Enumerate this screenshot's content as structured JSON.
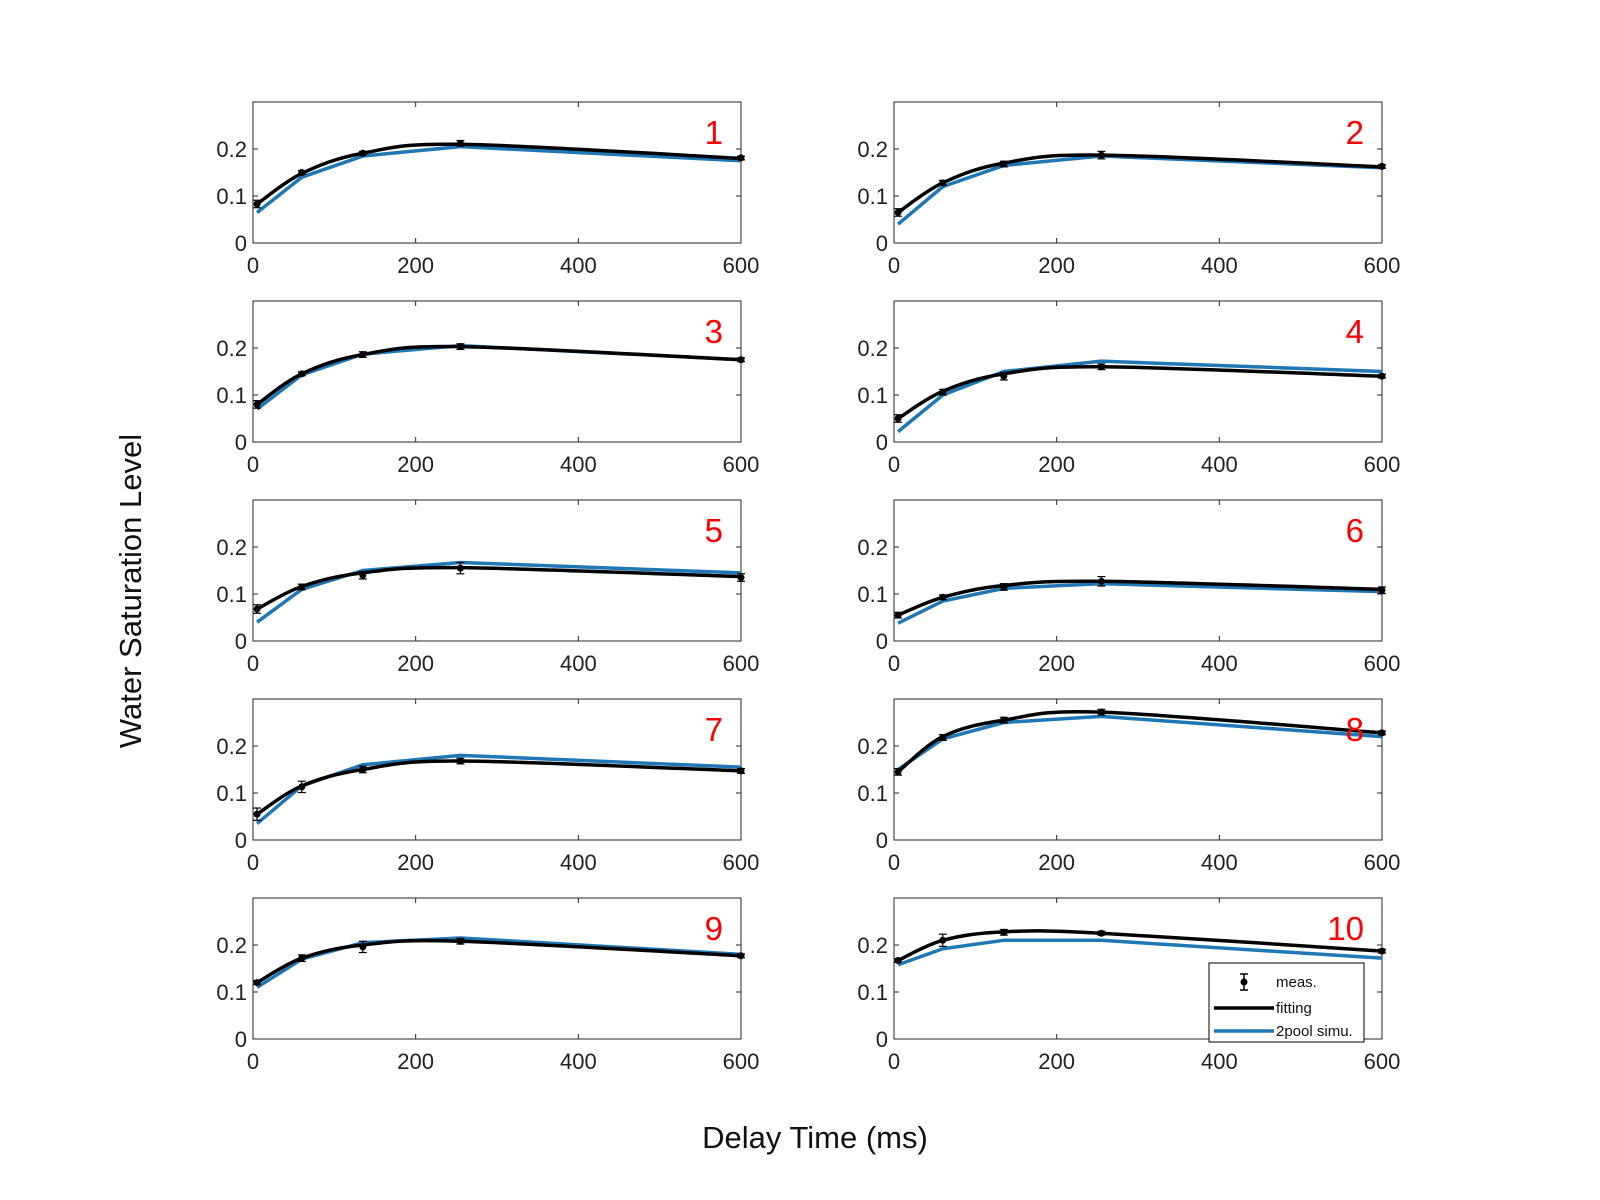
{
  "figure": {
    "xlabel": "Delay Time (ms)",
    "ylabel": "Water Saturation Level",
    "colors": {
      "measured": "#000000",
      "fitting": "#000000",
      "simulation": "#1f77b4",
      "panel_label": "#ff0000"
    }
  },
  "legend": {
    "entries": [
      "meas.",
      "fitting",
      "2pool simu."
    ]
  },
  "chart_data": [
    {
      "type": "line",
      "label": "1",
      "xlim": [
        0,
        600
      ],
      "ylim": [
        0,
        0.3
      ],
      "xticks": [
        0,
        200,
        400,
        600
      ],
      "yticks": [
        0,
        0.1,
        0.2
      ],
      "x": [
        5,
        60,
        135,
        255,
        600
      ],
      "series": [
        {
          "name": "meas.",
          "values": [
            0.083,
            0.15,
            0.191,
            0.212,
            0.181
          ],
          "errors": [
            0.008,
            0.004,
            0.004,
            0.006,
            0.004
          ]
        },
        {
          "name": "fitting",
          "values": [
            0.083,
            0.148,
            0.191,
            0.21,
            0.18
          ]
        },
        {
          "name": "2pool simu.",
          "values": [
            0.065,
            0.14,
            0.185,
            0.205,
            0.175
          ]
        }
      ]
    },
    {
      "type": "line",
      "label": "2",
      "xlim": [
        0,
        600
      ],
      "ylim": [
        0,
        0.3
      ],
      "xticks": [
        0,
        200,
        400,
        600
      ],
      "yticks": [
        0,
        0.1,
        0.2
      ],
      "x": [
        5,
        60,
        135,
        255,
        600
      ],
      "series": [
        {
          "name": "meas.",
          "values": [
            0.065,
            0.128,
            0.168,
            0.187,
            0.163
          ],
          "errors": [
            0.008,
            0.005,
            0.006,
            0.008,
            0.004
          ]
        },
        {
          "name": "fitting",
          "values": [
            0.065,
            0.128,
            0.17,
            0.187,
            0.162
          ]
        },
        {
          "name": "2pool simu.",
          "values": [
            0.04,
            0.12,
            0.165,
            0.185,
            0.16
          ]
        }
      ]
    },
    {
      "type": "line",
      "label": "3",
      "xlim": [
        0,
        600
      ],
      "ylim": [
        0,
        0.3
      ],
      "xticks": [
        0,
        200,
        400,
        600
      ],
      "yticks": [
        0,
        0.1,
        0.2
      ],
      "x": [
        5,
        60,
        135,
        255,
        600
      ],
      "series": [
        {
          "name": "meas.",
          "values": [
            0.08,
            0.145,
            0.186,
            0.203,
            0.175
          ],
          "errors": [
            0.008,
            0.004,
            0.006,
            0.006,
            0.004
          ]
        },
        {
          "name": "fitting",
          "values": [
            0.08,
            0.145,
            0.186,
            0.203,
            0.175
          ]
        },
        {
          "name": "2pool simu.",
          "values": [
            0.07,
            0.143,
            0.187,
            0.205,
            0.175
          ]
        }
      ]
    },
    {
      "type": "line",
      "label": "4",
      "xlim": [
        0,
        600
      ],
      "ylim": [
        0,
        0.3
      ],
      "xticks": [
        0,
        200,
        400,
        600
      ],
      "yticks": [
        0,
        0.1,
        0.2
      ],
      "x": [
        5,
        60,
        135,
        255,
        600
      ],
      "series": [
        {
          "name": "meas.",
          "values": [
            0.05,
            0.106,
            0.14,
            0.16,
            0.14
          ],
          "errors": [
            0.008,
            0.006,
            0.008,
            0.006,
            0.004
          ]
        },
        {
          "name": "fitting",
          "values": [
            0.05,
            0.108,
            0.145,
            0.16,
            0.14
          ]
        },
        {
          "name": "2pool simu.",
          "values": [
            0.022,
            0.1,
            0.15,
            0.172,
            0.15
          ]
        }
      ]
    },
    {
      "type": "line",
      "label": "5",
      "xlim": [
        0,
        600
      ],
      "ylim": [
        0,
        0.3
      ],
      "xticks": [
        0,
        200,
        400,
        600
      ],
      "yticks": [
        0,
        0.1,
        0.2
      ],
      "x": [
        5,
        60,
        135,
        255,
        600
      ],
      "series": [
        {
          "name": "meas.",
          "values": [
            0.068,
            0.115,
            0.14,
            0.155,
            0.135
          ],
          "errors": [
            0.009,
            0.006,
            0.008,
            0.012,
            0.008
          ]
        },
        {
          "name": "fitting",
          "values": [
            0.068,
            0.116,
            0.145,
            0.156,
            0.137
          ]
        },
        {
          "name": "2pool simu.",
          "values": [
            0.04,
            0.11,
            0.15,
            0.167,
            0.145
          ]
        }
      ]
    },
    {
      "type": "line",
      "label": "6",
      "xlim": [
        0,
        600
      ],
      "ylim": [
        0,
        0.3
      ],
      "xticks": [
        0,
        200,
        400,
        600
      ],
      "yticks": [
        0,
        0.1,
        0.2
      ],
      "x": [
        5,
        60,
        135,
        255,
        600
      ],
      "series": [
        {
          "name": "meas.",
          "values": [
            0.055,
            0.093,
            0.115,
            0.127,
            0.108
          ],
          "errors": [
            0.006,
            0.005,
            0.007,
            0.01,
            0.007
          ]
        },
        {
          "name": "fitting",
          "values": [
            0.055,
            0.093,
            0.118,
            0.127,
            0.11
          ]
        },
        {
          "name": "2pool simu.",
          "values": [
            0.038,
            0.085,
            0.112,
            0.122,
            0.105
          ]
        }
      ]
    },
    {
      "type": "line",
      "label": "7",
      "xlim": [
        0,
        600
      ],
      "ylim": [
        0,
        0.3
      ],
      "xticks": [
        0,
        200,
        400,
        600
      ],
      "yticks": [
        0,
        0.1,
        0.2
      ],
      "x": [
        5,
        60,
        135,
        255,
        600
      ],
      "series": [
        {
          "name": "meas.",
          "values": [
            0.055,
            0.113,
            0.15,
            0.168,
            0.147
          ],
          "errors": [
            0.013,
            0.012,
            0.007,
            0.006,
            0.005
          ]
        },
        {
          "name": "fitting",
          "values": [
            0.055,
            0.115,
            0.15,
            0.168,
            0.147
          ]
        },
        {
          "name": "2pool simu.",
          "values": [
            0.035,
            0.115,
            0.16,
            0.18,
            0.155
          ]
        }
      ]
    },
    {
      "type": "line",
      "label": "8",
      "xlim": [
        0,
        600
      ],
      "ylim": [
        0,
        0.3
      ],
      "xticks": [
        0,
        200,
        400,
        600
      ],
      "yticks": [
        0,
        0.1,
        0.2
      ],
      "x": [
        5,
        60,
        135,
        255,
        600
      ],
      "series": [
        {
          "name": "meas.",
          "values": [
            0.145,
            0.218,
            0.255,
            0.272,
            0.228
          ],
          "errors": [
            0.007,
            0.006,
            0.006,
            0.006,
            0.004
          ]
        },
        {
          "name": "fitting",
          "values": [
            0.145,
            0.22,
            0.255,
            0.272,
            0.228
          ]
        },
        {
          "name": "2pool simu.",
          "values": [
            0.15,
            0.215,
            0.25,
            0.263,
            0.22
          ]
        }
      ]
    },
    {
      "type": "line",
      "label": "9",
      "xlim": [
        0,
        600
      ],
      "ylim": [
        0,
        0.3
      ],
      "xticks": [
        0,
        200,
        400,
        600
      ],
      "yticks": [
        0,
        0.1,
        0.2
      ],
      "x": [
        5,
        60,
        135,
        255,
        600
      ],
      "series": [
        {
          "name": "meas.",
          "values": [
            0.12,
            0.172,
            0.196,
            0.208,
            0.177
          ],
          "errors": [
            0.004,
            0.007,
            0.012,
            0.006,
            0.004
          ]
        },
        {
          "name": "fitting",
          "values": [
            0.12,
            0.172,
            0.2,
            0.208,
            0.177
          ]
        },
        {
          "name": "2pool simu.",
          "values": [
            0.11,
            0.17,
            0.205,
            0.215,
            0.18
          ]
        }
      ]
    },
    {
      "type": "line",
      "label": "10",
      "xlim": [
        0,
        600
      ],
      "ylim": [
        0,
        0.3
      ],
      "xticks": [
        0,
        200,
        400,
        600
      ],
      "yticks": [
        0,
        0.1,
        0.2
      ],
      "x": [
        5,
        60,
        135,
        255,
        600
      ],
      "series": [
        {
          "name": "meas.",
          "values": [
            0.167,
            0.21,
            0.227,
            0.225,
            0.187
          ],
          "errors": [
            0.004,
            0.013,
            0.006,
            0.004,
            0.004
          ]
        },
        {
          "name": "fitting",
          "values": [
            0.167,
            0.21,
            0.228,
            0.225,
            0.187
          ]
        },
        {
          "name": "2pool simu.",
          "values": [
            0.158,
            0.192,
            0.21,
            0.21,
            0.172
          ]
        }
      ]
    }
  ]
}
